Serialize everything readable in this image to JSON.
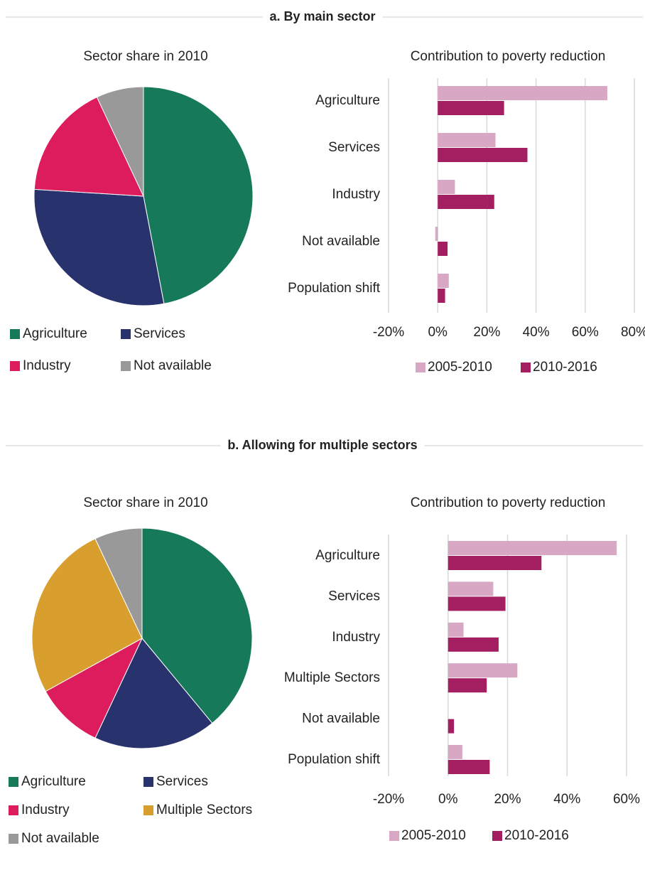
{
  "sections": [
    "a. By main sector",
    "b. Allowing  for multiple sectors"
  ],
  "chart_data": [
    {
      "type": "pie",
      "title": "Sector share in 2010",
      "categories": [
        "Agriculture",
        "Services",
        "Industry",
        "Not available"
      ],
      "values": [
        47,
        29,
        17,
        7
      ],
      "colors": [
        "#167a5a",
        "#28336e",
        "#dc1c5c",
        "#999999"
      ]
    },
    {
      "type": "hbar",
      "title": "Contribution to poverty reduction",
      "categories": [
        "Agriculture",
        "Services",
        "Industry",
        "Not available",
        "Population shift"
      ],
      "series": [
        {
          "name": "2005-2010",
          "color": "#d8a7c4",
          "values": [
            69,
            23.5,
            7,
            -1,
            4.5
          ]
        },
        {
          "name": "2010-2016",
          "color": "#a41e62",
          "values": [
            27,
            36.5,
            23,
            4,
            3
          ]
        }
      ],
      "xlim": [
        -20,
        80
      ],
      "xticks": [
        {
          "value": -20,
          "label": "-20%"
        },
        {
          "value": 0,
          "label": "0%"
        },
        {
          "value": 20,
          "label": "20%"
        },
        {
          "value": 40,
          "label": "40%"
        },
        {
          "value": 60,
          "label": "60%"
        },
        {
          "value": 80,
          "label": "80%"
        }
      ],
      "grid": true
    },
    {
      "type": "pie",
      "title": "Sector share in 2010",
      "categories": [
        "Agriculture",
        "Services",
        "Industry",
        "Multiple Sectors",
        "Not available"
      ],
      "values": [
        39,
        18,
        10,
        26,
        7
      ],
      "colors": [
        "#167a5a",
        "#28336e",
        "#dc1c5c",
        "#d89f2e",
        "#999999"
      ]
    },
    {
      "type": "hbar",
      "title": "Contribution to poverty reduction",
      "categories": [
        "Agriculture",
        "Services",
        "Industry",
        "Multiple Sectors",
        "Not available",
        "Population shift"
      ],
      "series": [
        {
          "name": "2005-2010",
          "color": "#d8a7c4",
          "values": [
            56.7,
            15.2,
            5.2,
            23.3,
            0,
            4.8
          ]
        },
        {
          "name": "2010-2016",
          "color": "#a41e62",
          "values": [
            31.4,
            19.3,
            17,
            13,
            2,
            14
          ]
        }
      ],
      "xlim": [
        -20,
        60
      ],
      "xticks": [
        {
          "value": -20,
          "label": "-20%"
        },
        {
          "value": 0,
          "label": "0%"
        },
        {
          "value": 20,
          "label": "20%"
        },
        {
          "value": 40,
          "label": "40%"
        },
        {
          "value": 60,
          "label": "60%"
        }
      ],
      "grid": true
    }
  ]
}
